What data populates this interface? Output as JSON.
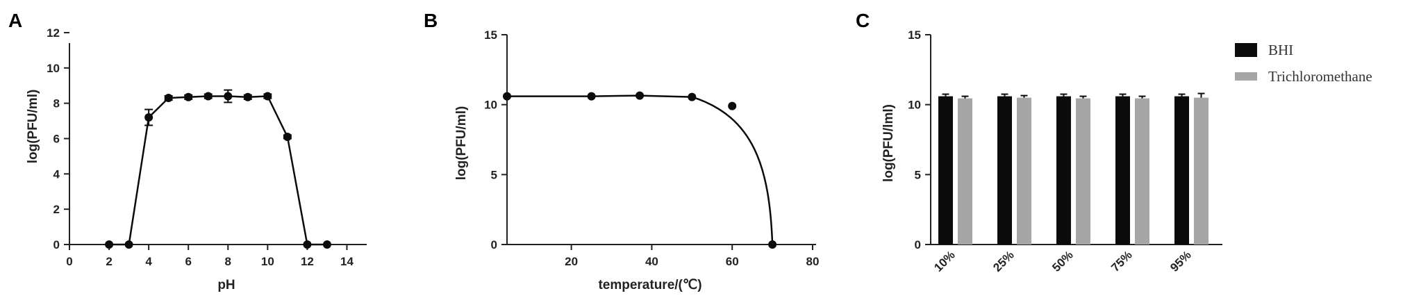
{
  "colors": {
    "axis": "#222222",
    "series_dark": "#0b0b0b",
    "series_gray": "#a6a6a6"
  },
  "chart_data": [
    {
      "panel": "A",
      "type": "line",
      "xlabel": "pH",
      "ylabel": "log(PFU/ml)",
      "xlim": [
        0,
        15
      ],
      "ylim": [
        0,
        12
      ],
      "xticks": [
        "0",
        "2",
        "4",
        "6",
        "8",
        "10",
        "12",
        "14"
      ],
      "yticks": [
        "0",
        "2",
        "4",
        "6",
        "8",
        "10",
        "12"
      ],
      "x": [
        2,
        3,
        4,
        5,
        6,
        7,
        8,
        9,
        10,
        11,
        12,
        13
      ],
      "y": [
        0,
        0,
        7.2,
        8.3,
        8.35,
        8.4,
        8.4,
        8.35,
        8.4,
        6.1,
        0,
        0
      ],
      "err": [
        0,
        0,
        0.45,
        0.12,
        0.12,
        0.12,
        0.35,
        0.12,
        0.12,
        0.1,
        0,
        0
      ]
    },
    {
      "panel": "B",
      "type": "line",
      "xlabel": "temperature/(℃)",
      "ylabel": "log(PFU/ml)",
      "xlim": [
        4,
        80
      ],
      "ylim": [
        0,
        15
      ],
      "xticks": [
        "20",
        "40",
        "60",
        "80"
      ],
      "yticks": [
        "0",
        "5",
        "10",
        "15"
      ],
      "x": [
        4,
        25,
        37,
        50,
        60,
        70
      ],
      "y": [
        10.6,
        10.6,
        10.65,
        10.55,
        9.9,
        0
      ]
    },
    {
      "panel": "C",
      "type": "bar",
      "ylabel": "log(PFU/lml)",
      "ylim": [
        0,
        15
      ],
      "yticks": [
        "0",
        "5",
        "10",
        "15"
      ],
      "categories": [
        "10%",
        "25%",
        "50%",
        "75%",
        "95%"
      ],
      "legend_position": "top-right",
      "series": [
        {
          "name": "BHI",
          "color": "#0b0b0b",
          "values": [
            10.6,
            10.6,
            10.6,
            10.6,
            10.6
          ],
          "err": [
            0.15,
            0.15,
            0.15,
            0.15,
            0.15
          ]
        },
        {
          "name": "Trichloromethane",
          "color": "#a6a6a6",
          "values": [
            10.45,
            10.5,
            10.45,
            10.45,
            10.5
          ],
          "err": [
            0.15,
            0.15,
            0.15,
            0.15,
            0.3
          ]
        }
      ]
    }
  ]
}
